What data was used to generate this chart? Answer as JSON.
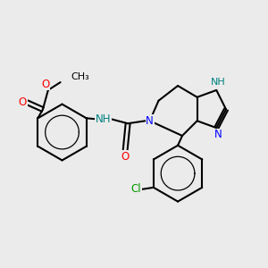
{
  "background_color": "#ebebeb",
  "bond_color": "#000000",
  "bond_width": 1.5,
  "atom_colors": {
    "O": "#ff0000",
    "N": "#0000ff",
    "Cl": "#009900",
    "NH_teal": "#008080",
    "C": "#000000"
  },
  "font_size": 8.5,
  "figsize": [
    3.0,
    3.0
  ],
  "dpi": 100
}
